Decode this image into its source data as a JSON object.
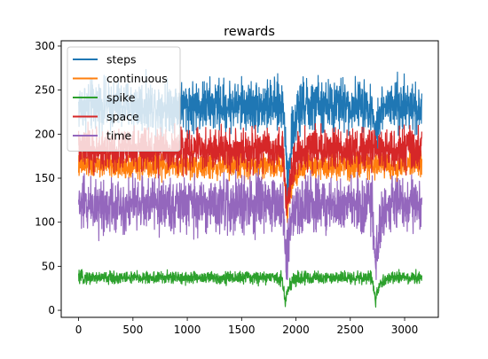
{
  "chart_data": {
    "type": "line",
    "title": "rewards",
    "xlabel": "",
    "ylabel": "",
    "xlim": [
      -160,
      3310
    ],
    "ylim": [
      -8,
      306
    ],
    "x_ticks": [
      0,
      500,
      1000,
      1500,
      2000,
      2500,
      3000
    ],
    "y_ticks": [
      0,
      50,
      100,
      150,
      200,
      250,
      300
    ],
    "n_points": 3160,
    "legend_position": "upper left",
    "grid": false,
    "series": [
      {
        "name": "steps",
        "color": "#1f77b4",
        "approx_mean": 232,
        "approx_band": [
          195,
          280
        ],
        "dips": [
          {
            "x": 1920,
            "min_y": 110
          },
          {
            "x": 2730,
            "min_y": 195
          }
        ]
      },
      {
        "name": "continuous",
        "color": "#ff7f0e",
        "approx_mean": 165,
        "approx_band": [
          145,
          190
        ],
        "dips": [
          {
            "x": 1920,
            "min_y": 95
          }
        ]
      },
      {
        "name": "spike",
        "color": "#2ca02c",
        "approx_mean": 37,
        "approx_band": [
          25,
          46
        ],
        "dips": [
          {
            "x": 1900,
            "min_y": 6
          },
          {
            "x": 2730,
            "min_y": 7
          }
        ]
      },
      {
        "name": "space",
        "color": "#d62728",
        "approx_mean": 182,
        "approx_band": [
          148,
          218
        ],
        "dips": [
          {
            "x": 1915,
            "min_y": 95
          }
        ]
      },
      {
        "name": "time",
        "color": "#9467bd",
        "approx_mean": 120,
        "approx_band": [
          78,
          170
        ],
        "dips": [
          {
            "x": 1910,
            "min_y": 35
          },
          {
            "x": 2730,
            "min_y": 40
          }
        ]
      }
    ]
  }
}
